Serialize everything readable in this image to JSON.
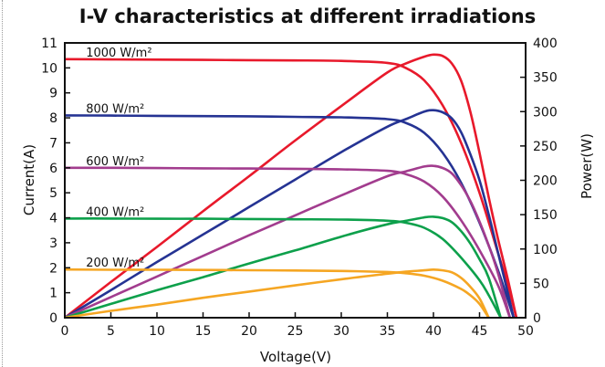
{
  "chart_data": {
    "type": "line",
    "title": "I-V characteristics at different irradiations",
    "xlabel": "Voltage(V)",
    "ylabel": "Current(A)",
    "y2label": "Power(W)",
    "xlim": [
      0,
      50
    ],
    "ylim": [
      0,
      11
    ],
    "y2lim": [
      0,
      400
    ],
    "x_ticks": [
      0,
      5,
      10,
      15,
      20,
      25,
      30,
      35,
      40,
      45,
      50
    ],
    "y_ticks": [
      0,
      1,
      2,
      3,
      4,
      5,
      6,
      7,
      8,
      9,
      10,
      11
    ],
    "y2_ticks": [
      0,
      50,
      100,
      150,
      200,
      250,
      300,
      350,
      400
    ],
    "grid": false,
    "legend": "none",
    "series": [
      {
        "irradiance_label": "1000 W/m²",
        "color": "#e8192b",
        "iv": [
          [
            0,
            10.35
          ],
          [
            5,
            10.34
          ],
          [
            10,
            10.33
          ],
          [
            15,
            10.32
          ],
          [
            20,
            10.31
          ],
          [
            25,
            10.3
          ],
          [
            30,
            10.28
          ],
          [
            35,
            10.2
          ],
          [
            37,
            10.0
          ],
          [
            39,
            9.5
          ],
          [
            41,
            8.5
          ],
          [
            43,
            7.0
          ],
          [
            45,
            5.0
          ],
          [
            47,
            2.6
          ],
          [
            48,
            1.4
          ],
          [
            49,
            0
          ]
        ],
        "pv": [
          [
            0,
            0
          ],
          [
            5,
            52
          ],
          [
            10,
            103
          ],
          [
            15,
            155
          ],
          [
            20,
            206
          ],
          [
            25,
            258
          ],
          [
            30,
            308
          ],
          [
            35,
            357
          ],
          [
            37,
            370
          ],
          [
            39,
            380
          ],
          [
            40,
            383
          ],
          [
            41,
            381
          ],
          [
            42,
            370
          ],
          [
            43,
            345
          ],
          [
            44,
            300
          ],
          [
            45,
            240
          ],
          [
            46,
            175
          ],
          [
            47,
            115
          ],
          [
            48,
            60
          ],
          [
            49,
            0
          ]
        ]
      },
      {
        "irradiance_label": "800 W/m²",
        "color": "#253393",
        "iv": [
          [
            0,
            8.1
          ],
          [
            5,
            8.09
          ],
          [
            10,
            8.08
          ],
          [
            15,
            8.07
          ],
          [
            20,
            8.06
          ],
          [
            25,
            8.04
          ],
          [
            30,
            8.02
          ],
          [
            35,
            7.95
          ],
          [
            37,
            7.8
          ],
          [
            39,
            7.4
          ],
          [
            41,
            6.6
          ],
          [
            43,
            5.4
          ],
          [
            45,
            3.8
          ],
          [
            47,
            1.9
          ],
          [
            48.7,
            0
          ]
        ],
        "pv": [
          [
            0,
            0
          ],
          [
            5,
            40
          ],
          [
            10,
            81
          ],
          [
            15,
            121
          ],
          [
            20,
            161
          ],
          [
            25,
            201
          ],
          [
            30,
            241
          ],
          [
            35,
            278
          ],
          [
            37,
            289
          ],
          [
            39,
            300
          ],
          [
            40,
            302
          ],
          [
            41,
            299
          ],
          [
            42,
            290
          ],
          [
            43,
            270
          ],
          [
            44,
            238
          ],
          [
            45,
            200
          ],
          [
            46,
            150
          ],
          [
            47,
            95
          ],
          [
            48,
            40
          ],
          [
            48.7,
            0
          ]
        ]
      },
      {
        "irradiance_label": "600 W/m²",
        "color": "#a23c8e",
        "iv": [
          [
            0,
            6.0
          ],
          [
            5,
            6.0
          ],
          [
            10,
            5.99
          ],
          [
            15,
            5.98
          ],
          [
            20,
            5.97
          ],
          [
            25,
            5.96
          ],
          [
            30,
            5.94
          ],
          [
            35,
            5.88
          ],
          [
            37,
            5.75
          ],
          [
            39,
            5.45
          ],
          [
            41,
            4.85
          ],
          [
            43,
            3.9
          ],
          [
            45,
            2.7
          ],
          [
            47,
            1.3
          ],
          [
            48.3,
            0
          ]
        ],
        "pv": [
          [
            0,
            0
          ],
          [
            5,
            30
          ],
          [
            10,
            60
          ],
          [
            15,
            90
          ],
          [
            20,
            120
          ],
          [
            25,
            149
          ],
          [
            30,
            178
          ],
          [
            35,
            206
          ],
          [
            37,
            213
          ],
          [
            39,
            220
          ],
          [
            40,
            221
          ],
          [
            41,
            218
          ],
          [
            42,
            210
          ],
          [
            43,
            193
          ],
          [
            44,
            170
          ],
          [
            45,
            140
          ],
          [
            46,
            105
          ],
          [
            47,
            65
          ],
          [
            48.3,
            0
          ]
        ]
      },
      {
        "irradiance_label": "400 W/m²",
        "color": "#0da04b",
        "iv": [
          [
            0,
            3.97
          ],
          [
            5,
            3.97
          ],
          [
            10,
            3.96
          ],
          [
            15,
            3.96
          ],
          [
            20,
            3.95
          ],
          [
            25,
            3.94
          ],
          [
            30,
            3.93
          ],
          [
            35,
            3.88
          ],
          [
            37,
            3.8
          ],
          [
            39,
            3.6
          ],
          [
            41,
            3.15
          ],
          [
            43,
            2.4
          ],
          [
            45,
            1.5
          ],
          [
            46,
            0.9
          ],
          [
            47.3,
            0
          ]
        ],
        "pv": [
          [
            0,
            0
          ],
          [
            5,
            20
          ],
          [
            10,
            40
          ],
          [
            15,
            59
          ],
          [
            20,
            79
          ],
          [
            25,
            98
          ],
          [
            30,
            118
          ],
          [
            35,
            136
          ],
          [
            37,
            141
          ],
          [
            39,
            146
          ],
          [
            40,
            147
          ],
          [
            41,
            145
          ],
          [
            42,
            139
          ],
          [
            43,
            126
          ],
          [
            44,
            108
          ],
          [
            45,
            85
          ],
          [
            46,
            58
          ],
          [
            47.3,
            0
          ]
        ]
      },
      {
        "irradiance_label": "200 W/m²",
        "color": "#f5a623",
        "iv": [
          [
            0,
            1.93
          ],
          [
            5,
            1.92
          ],
          [
            10,
            1.92
          ],
          [
            15,
            1.91
          ],
          [
            20,
            1.9
          ],
          [
            25,
            1.89
          ],
          [
            30,
            1.87
          ],
          [
            35,
            1.83
          ],
          [
            37,
            1.78
          ],
          [
            39,
            1.68
          ],
          [
            41,
            1.48
          ],
          [
            43,
            1.15
          ],
          [
            44,
            0.9
          ],
          [
            45,
            0.55
          ],
          [
            46,
            0
          ]
        ],
        "pv": [
          [
            0,
            0
          ],
          [
            5,
            10
          ],
          [
            10,
            19
          ],
          [
            15,
            29
          ],
          [
            20,
            38
          ],
          [
            25,
            47
          ],
          [
            30,
            56
          ],
          [
            35,
            64
          ],
          [
            37,
            67
          ],
          [
            39,
            69
          ],
          [
            40,
            70
          ],
          [
            41,
            69
          ],
          [
            42,
            66
          ],
          [
            43,
            58
          ],
          [
            44,
            45
          ],
          [
            45,
            28
          ],
          [
            46,
            0
          ]
        ]
      }
    ]
  }
}
